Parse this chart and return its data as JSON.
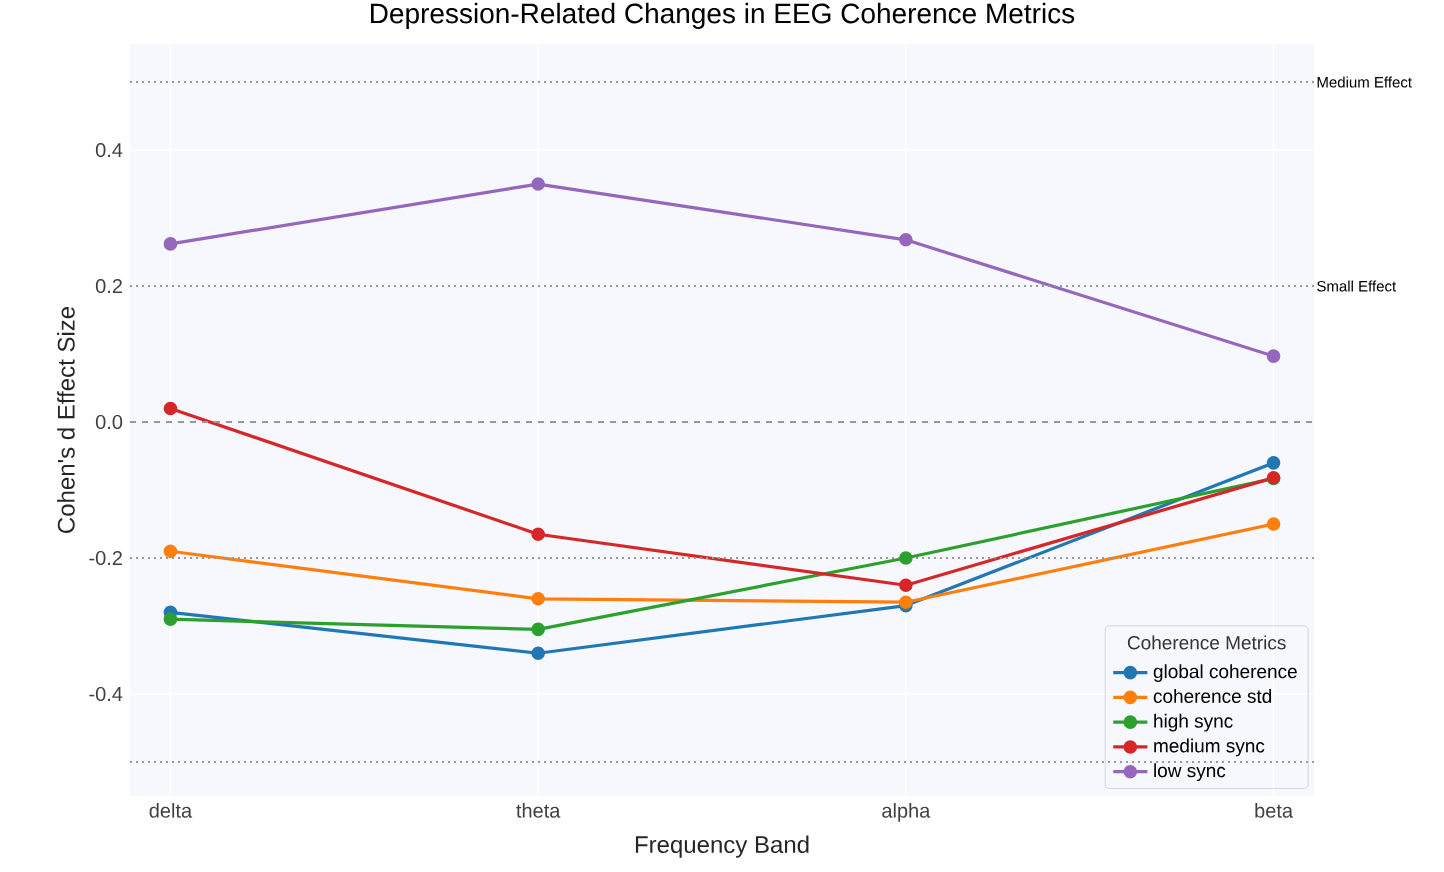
{
  "chart_data": {
    "type": "line",
    "title": "Depression-Related Changes in EEG Coherence Metrics",
    "xlabel": "Frequency Band",
    "ylabel": "Cohen's d Effect Size",
    "legend_title": "Coherence Metrics",
    "categories": [
      "delta",
      "theta",
      "alpha",
      "beta"
    ],
    "series": [
      {
        "name": "global coherence",
        "color": "#1f77b4",
        "values": [
          -0.28,
          -0.34,
          -0.27,
          -0.06
        ]
      },
      {
        "name": "coherence std",
        "color": "#ff7f0e",
        "values": [
          -0.19,
          -0.26,
          -0.265,
          -0.15
        ]
      },
      {
        "name": "high sync",
        "color": "#2ca02c",
        "values": [
          -0.29,
          -0.305,
          -0.2,
          -0.083
        ]
      },
      {
        "name": "medium sync",
        "color": "#d62728",
        "values": [
          0.02,
          -0.165,
          -0.24,
          -0.082
        ]
      },
      {
        "name": "low sync",
        "color": "#9467bd",
        "values": [
          0.262,
          0.35,
          0.268,
          0.097
        ]
      }
    ],
    "ylim": [
      -0.55,
      0.556
    ],
    "yticks": [
      -0.4,
      -0.2,
      {
        "value": 0,
        "label": "0.0"
      },
      0.2,
      0.4
    ],
    "ref_lines": [
      {
        "axis": "y",
        "value": 0,
        "color": "#999999",
        "line_style": "dashed"
      },
      {
        "axis": "y",
        "value": 0.2,
        "label": "Small Effect",
        "color": "#999999",
        "line_style": "dotted"
      },
      {
        "axis": "y",
        "value": -0.2,
        "color": "#999999",
        "line_style": "dotted"
      },
      {
        "axis": "y",
        "value": 0.5,
        "label": "Medium Effect",
        "color": "#999999",
        "line_style": "dotted"
      },
      {
        "axis": "y",
        "value": -0.5,
        "color": "#999999",
        "line_style": "dotted"
      }
    ],
    "grid": true,
    "legend": "bottom right",
    "marker": "circle",
    "line_style": "solid"
  }
}
